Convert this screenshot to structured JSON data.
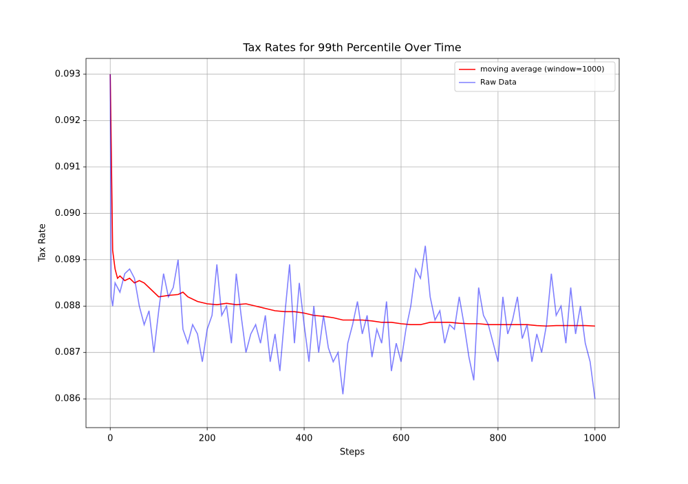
{
  "chart_data": {
    "type": "line",
    "title": "Tax Rates for 99th Percentile Over Time",
    "x_label": "Steps",
    "y_label": "Tax Rate",
    "xlim": [
      -50,
      1050
    ],
    "ylim": [
      0.08538,
      0.09334
    ],
    "xticks": [
      0,
      200,
      400,
      600,
      800,
      1000
    ],
    "yticks": [
      0.086,
      0.087,
      0.088,
      0.089,
      {
        "value": 0.09,
        "label": "0.090"
      },
      0.091,
      0.092,
      0.093
    ],
    "grid": true,
    "legend": "upper right",
    "series": [
      {
        "name": "moving average (window=1000)",
        "color": "red",
        "alpha": 1,
        "x": [
          0,
          5,
          10,
          15,
          20,
          30,
          40,
          50,
          60,
          70,
          80,
          90,
          100,
          120,
          140,
          150,
          160,
          180,
          200,
          220,
          240,
          260,
          280,
          300,
          320,
          340,
          360,
          380,
          400,
          420,
          440,
          460,
          480,
          500,
          520,
          540,
          560,
          580,
          600,
          620,
          640,
          660,
          680,
          700,
          720,
          740,
          760,
          780,
          800,
          820,
          840,
          860,
          880,
          900,
          920,
          940,
          960,
          980,
          1000
        ],
        "values": [
          0.093,
          0.0892,
          0.0888,
          0.0886,
          0.08865,
          0.08855,
          0.0886,
          0.0885,
          0.08855,
          0.0885,
          0.0884,
          0.0883,
          0.0882,
          0.08823,
          0.08825,
          0.0883,
          0.0882,
          0.0881,
          0.08805,
          0.08803,
          0.08806,
          0.08803,
          0.08805,
          0.088,
          0.08795,
          0.0879,
          0.08788,
          0.08788,
          0.08785,
          0.0878,
          0.08778,
          0.08775,
          0.0877,
          0.0877,
          0.0877,
          0.08768,
          0.08765,
          0.08765,
          0.08762,
          0.0876,
          0.0876,
          0.08765,
          0.08765,
          0.08765,
          0.08763,
          0.08762,
          0.08762,
          0.0876,
          0.0876,
          0.0876,
          0.0876,
          0.0876,
          0.08758,
          0.08757,
          0.08758,
          0.08758,
          0.08758,
          0.08758,
          0.08757
        ]
      },
      {
        "name": "Raw Data",
        "color": "blue",
        "alpha": 0.5,
        "x": [
          0,
          2,
          5,
          10,
          20,
          30,
          40,
          50,
          60,
          70,
          80,
          90,
          100,
          110,
          120,
          130,
          140,
          150,
          160,
          170,
          180,
          190,
          200,
          210,
          220,
          230,
          240,
          250,
          260,
          270,
          280,
          290,
          300,
          310,
          320,
          330,
          340,
          350,
          360,
          370,
          380,
          390,
          400,
          410,
          420,
          430,
          440,
          450,
          460,
          470,
          480,
          490,
          500,
          510,
          520,
          530,
          540,
          550,
          560,
          570,
          580,
          590,
          600,
          610,
          620,
          630,
          640,
          650,
          660,
          670,
          680,
          690,
          700,
          710,
          720,
          730,
          740,
          750,
          760,
          770,
          780,
          790,
          800,
          810,
          820,
          830,
          840,
          850,
          860,
          870,
          880,
          890,
          900,
          910,
          920,
          930,
          940,
          950,
          960,
          970,
          980,
          990,
          1000
        ],
        "values": [
          0.093,
          0.0882,
          0.088,
          0.0885,
          0.0883,
          0.0887,
          0.0888,
          0.0886,
          0.088,
          0.0876,
          0.0879,
          0.087,
          0.0879,
          0.0887,
          0.0882,
          0.0884,
          0.089,
          0.0875,
          0.0872,
          0.0876,
          0.0874,
          0.0868,
          0.0875,
          0.0878,
          0.0889,
          0.0878,
          0.088,
          0.0872,
          0.0887,
          0.0878,
          0.087,
          0.0874,
          0.0876,
          0.0872,
          0.0878,
          0.0868,
          0.0874,
          0.0866,
          0.0878,
          0.0889,
          0.0872,
          0.0885,
          0.0876,
          0.0868,
          0.088,
          0.087,
          0.0878,
          0.0871,
          0.0868,
          0.087,
          0.0861,
          0.0872,
          0.0876,
          0.0881,
          0.0874,
          0.0878,
          0.0869,
          0.0875,
          0.0872,
          0.0881,
          0.0866,
          0.0872,
          0.0868,
          0.0875,
          0.088,
          0.0888,
          0.0886,
          0.0893,
          0.0882,
          0.0877,
          0.0879,
          0.0872,
          0.0876,
          0.0875,
          0.0882,
          0.0876,
          0.0869,
          0.0864,
          0.0884,
          0.0878,
          0.0876,
          0.0872,
          0.0868,
          0.0882,
          0.0874,
          0.0877,
          0.0882,
          0.0873,
          0.0876,
          0.0868,
          0.0874,
          0.087,
          0.0876,
          0.0887,
          0.0878,
          0.088,
          0.0872,
          0.0884,
          0.0874,
          0.088,
          0.0872,
          0.0868,
          0.086
        ]
      }
    ]
  }
}
